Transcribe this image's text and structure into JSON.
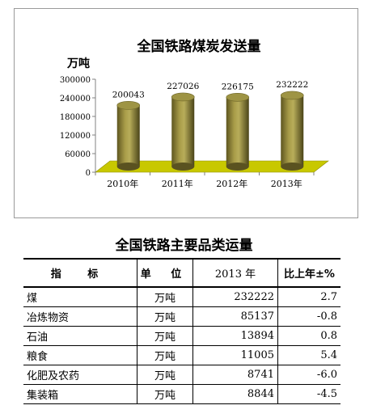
{
  "chart_data": {
    "type": "bar",
    "title": "全国铁路煤炭发送量",
    "ylabel": "万吨",
    "categories": [
      "2010年",
      "2011年",
      "2012年",
      "2013年"
    ],
    "values": [
      200043,
      227026,
      226175,
      232222
    ],
    "data_labels": [
      "200043",
      "227026",
      "226175",
      "232222"
    ],
    "ylim": [
      0,
      300000
    ],
    "yticks": [
      0,
      60000,
      120000,
      180000,
      240000,
      300000
    ],
    "ytick_labels": [
      "0",
      "60000",
      "120000",
      "180000",
      "240000",
      "300000"
    ],
    "grid": false,
    "colors": {
      "bar": "#8e8434",
      "floor": "#c8c800"
    }
  },
  "table": {
    "title": "全国铁路主要品类运量",
    "headers": [
      "指  标",
      "单 位",
      "2013 年",
      "比上年±%"
    ],
    "rows": [
      {
        "name": "煤",
        "unit": "万吨",
        "value": "232222",
        "change": "2.7"
      },
      {
        "name": "冶炼物资",
        "unit": "万吨",
        "value": "85137",
        "change": "-0.8"
      },
      {
        "name": "石油",
        "unit": "万吨",
        "value": "13894",
        "change": "0.8"
      },
      {
        "name": "粮食",
        "unit": "万吨",
        "value": "11005",
        "change": "5.4"
      },
      {
        "name": "化肥及农药",
        "unit": "万吨",
        "value": "8741",
        "change": "-6.0"
      },
      {
        "name": "集装箱",
        "unit": "万吨",
        "value": "8844",
        "change": "-4.5"
      }
    ]
  }
}
